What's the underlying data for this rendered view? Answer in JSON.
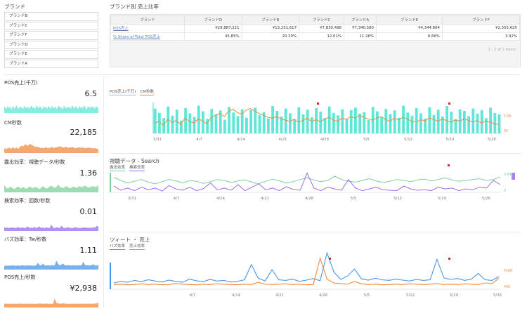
{
  "brand_filter": {
    "title": "ブランド",
    "items": [
      "ブランドB",
      "ブランドC",
      "ブランドF",
      "ブランドD",
      "ブランドE",
      "ブランドA"
    ]
  },
  "share_table": {
    "title": "ブランド別 売上比率",
    "columns": [
      "ブランド",
      "ブランドD",
      "ブランドB",
      "ブランドC",
      "ブランドA",
      "ブランドE",
      "ブランドF"
    ],
    "rows": [
      {
        "label": "POS売上",
        "values": [
          "¥29,887,221",
          "¥13,231,617",
          "¥7,830,498",
          "¥7,340,580",
          "¥4,344,864",
          "¥2,555,625"
        ]
      },
      {
        "label": "% Share of Total POS売上",
        "values": [
          "45.85%",
          "20.30%",
          "12.01%",
          "11.26%",
          "6.66%",
          "3.92%"
        ]
      }
    ],
    "pager": "1 - 2 of 2 items"
  },
  "kpis": [
    {
      "label": "POS売上(千万)",
      "value": "6.5",
      "color": "#5ee6d6"
    },
    {
      "label": "CM秒数",
      "value": "22,185",
      "color": "#f08a3e"
    },
    {
      "label": "露出効率：視聴データ/秒数",
      "value": "1.36",
      "color": "#7ed09a"
    },
    {
      "label": "検索効率：回数/秒数",
      "value": "0.01",
      "color": "#9b6cf0"
    },
    {
      "label": "バズ効率：Tw/秒数",
      "value": "1.11",
      "color": "#4a96e8"
    },
    {
      "label": "POS売上/秒数",
      "value": "¥2,938",
      "color": "#f08a3e"
    }
  ],
  "charts": [
    {
      "title": "",
      "legend": [
        {
          "label": "POS売上(千万)",
          "color": "#5ee6d6"
        },
        {
          "label": "CM秒数",
          "color": "#f08a3e"
        }
      ],
      "x_ticks": [
        "3/31",
        "4/7",
        "4/14",
        "4/21",
        "4/28",
        "5/5",
        "5/12",
        "5/19",
        "5/26"
      ],
      "y_right_labels": [
        "5.5K",
        "5K"
      ]
    },
    {
      "title": "視聴データ - Search",
      "legend": [
        {
          "label": "露出効率",
          "color": "#7ed09a"
        },
        {
          "label": "検索効率",
          "color": "#9b6cf0"
        }
      ],
      "x_ticks": [
        "3/31",
        "4/7",
        "4/14",
        "4/21",
        "4/28",
        "5/5",
        "5/12",
        "5/19",
        "5/26"
      ],
      "y_right_labels": [
        "0.04",
        "0"
      ]
    },
    {
      "title": "ツィート ・ 売上",
      "legend": [
        {
          "label": "バズ効率",
          "color": "#4a96e8"
        },
        {
          "label": "売上効率",
          "color": "#f08a3e"
        }
      ],
      "x_ticks": [
        "4/7",
        "4/14",
        "4/21",
        "4/28",
        "5/5",
        "5/12",
        "5/19",
        "5/26"
      ],
      "y_right_labels": [
        "¥10K",
        "¥0K"
      ]
    }
  ],
  "chart_data": [
    {
      "type": "bar",
      "series": [
        {
          "name": "POS売上(千万)",
          "values": [
            6.2,
            5.1,
            3.8,
            6.7,
            4.4,
            5.9,
            3.2,
            6.3,
            5.0,
            4.1,
            6.9,
            5.5,
            3.6,
            6.1,
            4.8,
            5.7,
            3.4,
            6.6,
            5.2,
            4.3,
            6.0,
            3.9,
            5.8,
            6.4,
            4.6,
            5.3,
            3.7,
            6.8,
            5.6,
            4.2,
            6.2,
            5.0,
            3.5,
            6.5,
            4.7,
            5.9,
            4.0,
            6.3,
            5.4,
            3.8,
            6.7,
            5.1,
            4.5,
            6.0,
            3.6,
            5.8,
            6.4,
            4.9,
            5.3,
            3.3,
            6.6,
            5.5,
            4.1,
            6.1,
            4.8,
            5.7,
            3.9,
            6.9,
            5.2,
            4.4,
            6.3,
            5.0,
            3.7,
            6.5,
            4.6,
            5.9,
            4.2,
            6.8,
            5.4,
            3.5,
            6.0,
            5.6,
            4.3,
            6.2,
            4.9,
            5.8,
            3.8,
            6.4,
            5.1,
            4.7
          ]
        },
        {
          "name": "CM秒数",
          "values": [
            5.25,
            5.3,
            5.2,
            5.35,
            5.28,
            5.32,
            5.22,
            5.38,
            5.3,
            5.26,
            5.36,
            5.31,
            5.24,
            5.4,
            5.45,
            5.5,
            5.42,
            5.55,
            5.6,
            5.52,
            5.48,
            5.58,
            5.62,
            5.55,
            5.5,
            5.45,
            5.4,
            5.38,
            5.42,
            5.36,
            5.33,
            5.3,
            5.35,
            5.28,
            5.32,
            5.38,
            5.3,
            5.34,
            5.29,
            5.36,
            5.4,
            5.33,
            5.3,
            5.38,
            5.35,
            5.42,
            5.38,
            5.45,
            5.4,
            5.36,
            5.33,
            5.38,
            5.42,
            5.35,
            5.3,
            5.38,
            5.34,
            5.4,
            5.36,
            5.3,
            5.28,
            5.34,
            5.32,
            5.38,
            5.35,
            5.3,
            5.36,
            5.32,
            5.28,
            5.34,
            5.3,
            5.36,
            5.33,
            5.28,
            5.32,
            5.26,
            5.3,
            5.28,
            5.24,
            5.22
          ]
        }
      ]
    },
    {
      "type": "line",
      "series": [
        {
          "name": "露出効率",
          "values": [
            0.035,
            0.028,
            0.022,
            0.026,
            0.03,
            0.024,
            0.02,
            0.025,
            0.03,
            0.027,
            0.022,
            0.028,
            0.026,
            0.021,
            0.025,
            0.03,
            0.028,
            0.023,
            0.027,
            0.029,
            0.024,
            0.02,
            0.026,
            0.031,
            0.027,
            0.022,
            0.025,
            0.03,
            0.034,
            0.029,
            0.025,
            0.028,
            0.038,
            0.03,
            0.026,
            0.024,
            0.028,
            0.032,
            0.027,
            0.023,
            0.026,
            0.03,
            0.028,
            0.025,
            0.029,
            0.031,
            0.027,
            0.03,
            0.034,
            0.029,
            0.026,
            0.028,
            0.03,
            0.032,
            0.028,
            0.03,
            0.036
          ]
        },
        {
          "name": "検索効率",
          "values": [
            0.015,
            0.005,
            0.01,
            0.004,
            0.012,
            0.006,
            0.01,
            0.003,
            0.016,
            0.008,
            0.005,
            0.012,
            0.004,
            0.009,
            0.022,
            0.006,
            0.01,
            0.005,
            0.018,
            0.004,
            0.012,
            0.02,
            0.006,
            0.01,
            0.004,
            0.013,
            0.007,
            0.005,
            0.045,
            0.01,
            0.004,
            0.012,
            0.008,
            0.005,
            0.03,
            0.01,
            0.004,
            0.008,
            0.012,
            0.006,
            0.005,
            0.004,
            0.015,
            0.008,
            0.005,
            0.006,
            0.004,
            0.012,
            0.008,
            0.01,
            0.004,
            0.008,
            0.006,
            0.012,
            0.01,
            0.028,
            0.018
          ]
        }
      ]
    },
    {
      "type": "line",
      "series": [
        {
          "name": "バズ効率",
          "values": [
            2.0,
            2.5,
            2.2,
            2.8,
            2.4,
            3.0,
            2.6,
            2.3,
            2.9,
            2.5,
            2.2,
            3.2,
            2.7,
            2.4,
            3.1,
            2.6,
            2.8,
            2.3,
            2.5,
            3.0,
            7.8,
            3.5,
            2.6,
            6.2,
            3.0,
            2.8,
            3.2,
            2.5,
            2.9,
            3.4,
            2.7,
            11.5,
            5.5,
            3.1,
            4.2,
            6.4,
            3.3,
            2.9,
            3.5,
            3.0,
            2.8,
            3.2,
            2.9,
            2.6,
            3.1,
            2.8,
            3.0,
            9.5,
            3.6,
            3.1,
            3.4,
            2.8,
            3.2,
            5.0,
            3.0,
            2.8,
            4.0
          ]
        },
        {
          "name": "売上効率",
          "values": [
            1.5,
            1.6,
            1.4,
            1.5,
            1.7,
            1.5,
            1.6,
            1.4,
            1.5,
            1.8,
            1.6,
            1.5,
            1.4,
            1.6,
            1.5,
            1.7,
            1.6,
            1.5,
            1.4,
            1.6,
            1.5,
            2.2,
            1.6,
            1.5,
            1.6,
            1.7,
            1.5,
            1.6,
            1.4,
            1.5,
            9.8,
            3.2,
            2.0,
            1.8,
            1.6,
            2.5,
            1.7,
            1.5,
            1.6,
            1.4,
            1.5,
            1.6,
            1.5,
            1.7,
            1.6,
            1.5,
            1.6,
            1.8,
            1.5,
            1.6,
            1.5,
            1.7,
            1.6,
            1.5,
            2.0,
            1.8,
            3.5
          ]
        }
      ]
    }
  ]
}
